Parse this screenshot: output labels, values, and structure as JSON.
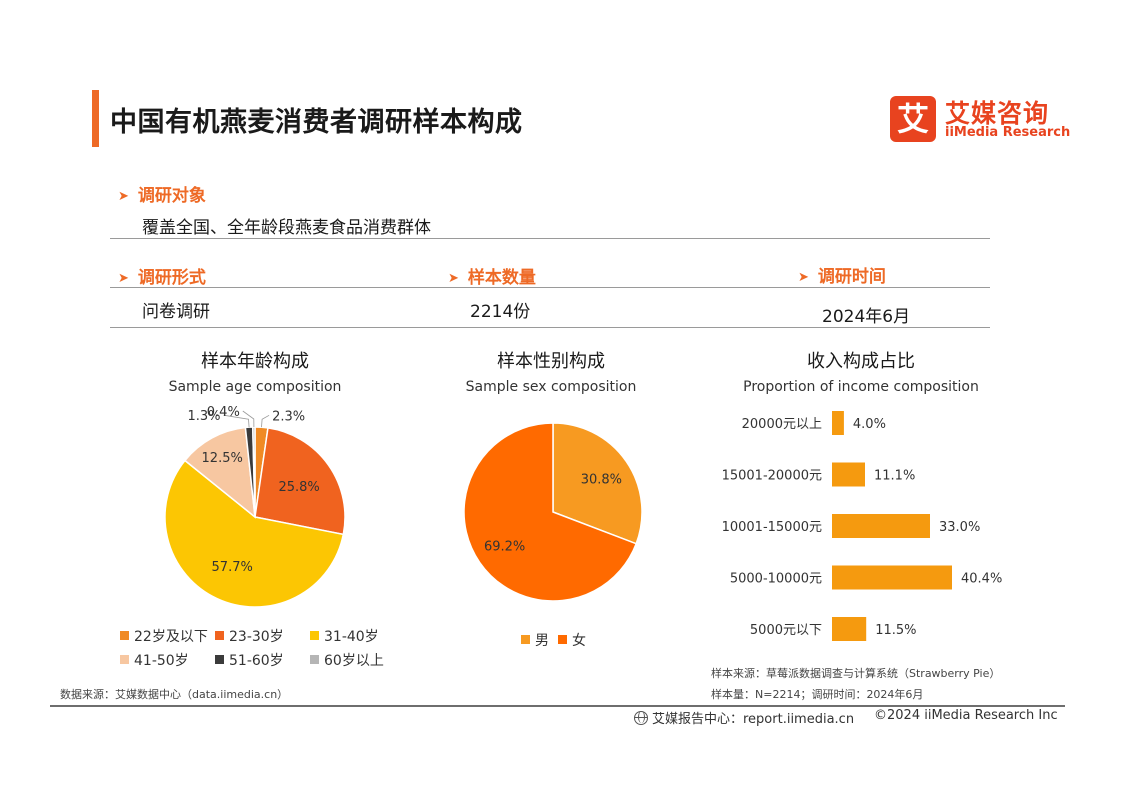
{
  "header": {
    "title": "中国有机燕麦消费者调研样本构成",
    "logo_mark": "艾",
    "logo_cn": "艾媒咨询",
    "logo_en": "iiMedia Research"
  },
  "survey": {
    "object_label": "调研对象",
    "object_value": "覆盖全国、全年龄段燕麦食品消费群体",
    "form_label": "调研形式",
    "form_value": "问卷调研",
    "size_label": "样本数量",
    "size_value": "2214份",
    "time_label": "调研时间",
    "time_value": "2024年6月"
  },
  "colors": {
    "accent": "#ee6a26",
    "age_22_below": "#f08a24",
    "age_23_30": "#f0631f",
    "age_31_40": "#fcc603",
    "age_41_50": "#f7c7a1",
    "age_51_60": "#3b3b3b",
    "age_60_above": "#b5b5b5",
    "male": "#f79a21",
    "female": "#ff6a00",
    "income_bar": "#f59a0f"
  },
  "chart_data": [
    {
      "type": "pie",
      "title": "样本年龄构成",
      "subtitle": "Sample age composition",
      "categories": [
        "22岁及以下",
        "23-30岁",
        "31-40岁",
        "41-50岁",
        "51-60岁",
        "60岁以上"
      ],
      "values": [
        2.3,
        25.8,
        57.7,
        12.5,
        1.3,
        0.4
      ],
      "labels": [
        "2.3%",
        "25.8%",
        "57.7%",
        "12.5%",
        "1.3%",
        "0.4%"
      ],
      "legend": "bottom"
    },
    {
      "type": "pie",
      "title": "样本性别构成",
      "subtitle": "Sample sex composition",
      "categories": [
        "男",
        "女"
      ],
      "values": [
        30.8,
        69.2
      ],
      "labels": [
        "30.8%",
        "69.2%"
      ],
      "legend": "bottom"
    },
    {
      "type": "bar",
      "orientation": "horizontal",
      "title": "收入构成占比",
      "subtitle": "Proportion of income composition",
      "categories": [
        "20000元以上",
        "15001-20000元",
        "10001-15000元",
        "5000-10000元",
        "5000元以下"
      ],
      "values": [
        4.0,
        11.1,
        33.0,
        40.4,
        11.5
      ],
      "labels": [
        "4.0%",
        "11.1%",
        "33.0%",
        "40.4%",
        "11.5%"
      ],
      "xlim": [
        0,
        45
      ]
    }
  ],
  "notes": {
    "source_left": "数据来源：艾媒数据中心（data.iimedia.cn）",
    "sample_source": "样本来源：草莓派数据调查与计算系统（Strawberry Pie）",
    "sample_info": "样本量：N=2214；调研时间：2024年6月"
  },
  "footer": {
    "report_center": "艾媒报告中心：report.iimedia.cn",
    "copyright": "©2024  iiMedia Research Inc"
  }
}
